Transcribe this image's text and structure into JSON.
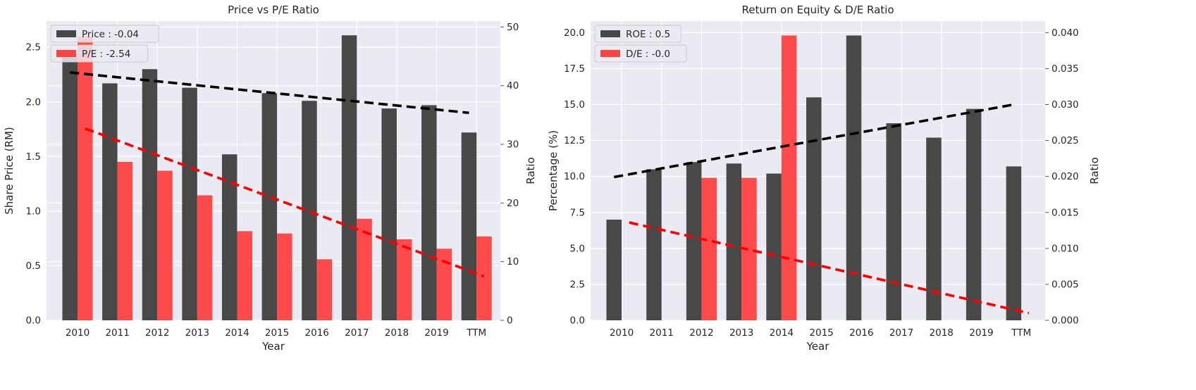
{
  "chart_data": [
    {
      "type": "bar",
      "title": "Price vs P/E Ratio",
      "xlabel": "Year",
      "ylabel": "Share Price (RM)",
      "y2label": "Ratio",
      "categories": [
        "2010",
        "2011",
        "2012",
        "2013",
        "2014",
        "2015",
        "2016",
        "2017",
        "2018",
        "2019",
        "TTM"
      ],
      "ylim": [
        0,
        2.74
      ],
      "y2lim": [
        0,
        51
      ],
      "yticks": [
        "0.0",
        "0.5",
        "1.0",
        "1.5",
        "2.0",
        "2.5"
      ],
      "y2ticks": [
        "0",
        "10",
        "20",
        "30",
        "40",
        "50"
      ],
      "grid": true,
      "legend_position": "top-left",
      "series": [
        {
          "name": "Price : -0.04",
          "axis": "left",
          "color": "#3a3a3a",
          "values": [
            2.43,
            2.17,
            2.3,
            2.13,
            1.52,
            2.08,
            2.01,
            2.61,
            1.94,
            1.97,
            1.72
          ]
        },
        {
          "name": "P/E : -2.54",
          "axis": "right",
          "color": "#ff3333",
          "values": [
            48.4,
            27.0,
            25.5,
            21.3,
            15.2,
            14.8,
            10.4,
            17.3,
            13.8,
            12.2,
            14.3
          ]
        }
      ],
      "trendlines": [
        {
          "axis": "left",
          "color": "#000000",
          "start": 2.27,
          "end": 1.9
        },
        {
          "axis": "right",
          "color": "#ff0000",
          "start": 32.7,
          "end": 7.5
        }
      ]
    },
    {
      "type": "bar",
      "title": "Return on Equity & D/E Ratio",
      "xlabel": "Year",
      "ylabel": "Percentage (%)",
      "y2label": "Ratio",
      "categories": [
        "2010",
        "2011",
        "2012",
        "2013",
        "2014",
        "2015",
        "2016",
        "2017",
        "2018",
        "2019",
        "TTM"
      ],
      "ylim": [
        0,
        20.8
      ],
      "y2lim": [
        0,
        0.0416
      ],
      "yticks": [
        "0.0",
        "2.5",
        "5.0",
        "7.5",
        "10.0",
        "12.5",
        "15.0",
        "17.5",
        "20.0"
      ],
      "y2ticks": [
        "0.000",
        "0.005",
        "0.010",
        "0.015",
        "0.020",
        "0.025",
        "0.030",
        "0.035",
        "0.040"
      ],
      "grid": true,
      "legend_position": "top-left",
      "series": [
        {
          "name": "ROE : 0.5",
          "axis": "left",
          "color": "#3a3a3a",
          "values": [
            7.0,
            10.5,
            11.0,
            10.9,
            10.2,
            15.5,
            19.8,
            13.7,
            12.7,
            14.7,
            10.7
          ]
        },
        {
          "name": "D/E : -0.0",
          "axis": "right",
          "color": "#ff3333",
          "values": [
            0,
            0,
            0.0198,
            0.0198,
            0.0396,
            0,
            0,
            0,
            0,
            0,
            0
          ]
        }
      ],
      "trendlines": [
        {
          "axis": "left",
          "color": "#000000",
          "start": 9.96,
          "end": 15.0
        },
        {
          "axis": "right",
          "color": "#ff0000",
          "start": 0.0136,
          "end": 0.001
        }
      ]
    }
  ]
}
